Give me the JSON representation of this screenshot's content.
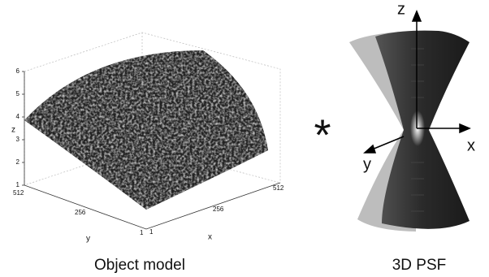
{
  "panels": [
    {
      "caption": "Object model",
      "z_label": "z",
      "y_label": "y",
      "x_label": "x",
      "z_ticks": [
        1,
        2,
        3,
        4,
        5,
        6
      ],
      "y_ticks": [
        1,
        256,
        512
      ],
      "x_ticks": [
        1,
        256,
        512
      ]
    },
    {
      "caption": "3D PSF",
      "z_label": "z",
      "x_label": "x",
      "y_label": "y"
    }
  ],
  "operator": "*"
}
